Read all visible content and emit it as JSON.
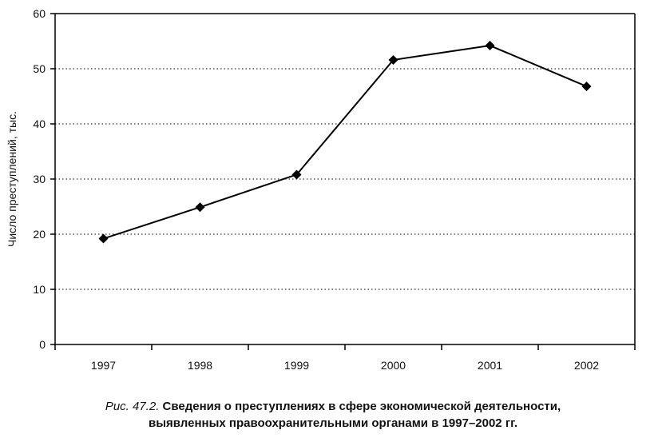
{
  "chart_data": {
    "type": "line",
    "title": "",
    "xlabel": "",
    "ylabel": "Число преступлений, тыс.",
    "categories": [
      "1997",
      "1998",
      "1999",
      "2000",
      "2001",
      "2002"
    ],
    "series": [
      {
        "values": [
          19.2,
          24.9,
          30.8,
          51.6,
          54.2,
          46.8
        ]
      }
    ],
    "ylim": [
      0,
      60
    ],
    "yticks": [
      0,
      10,
      20,
      30,
      40,
      50,
      60
    ],
    "grid": "horizontal-dotted",
    "marker": "diamond",
    "legend": "none"
  },
  "caption": {
    "number": "Рис. 47.2.",
    "line1": "Сведения о преступлениях в сфере экономической деятельности,",
    "line2": "выявленных правоохранительными органами в 1997–2002 гг."
  }
}
